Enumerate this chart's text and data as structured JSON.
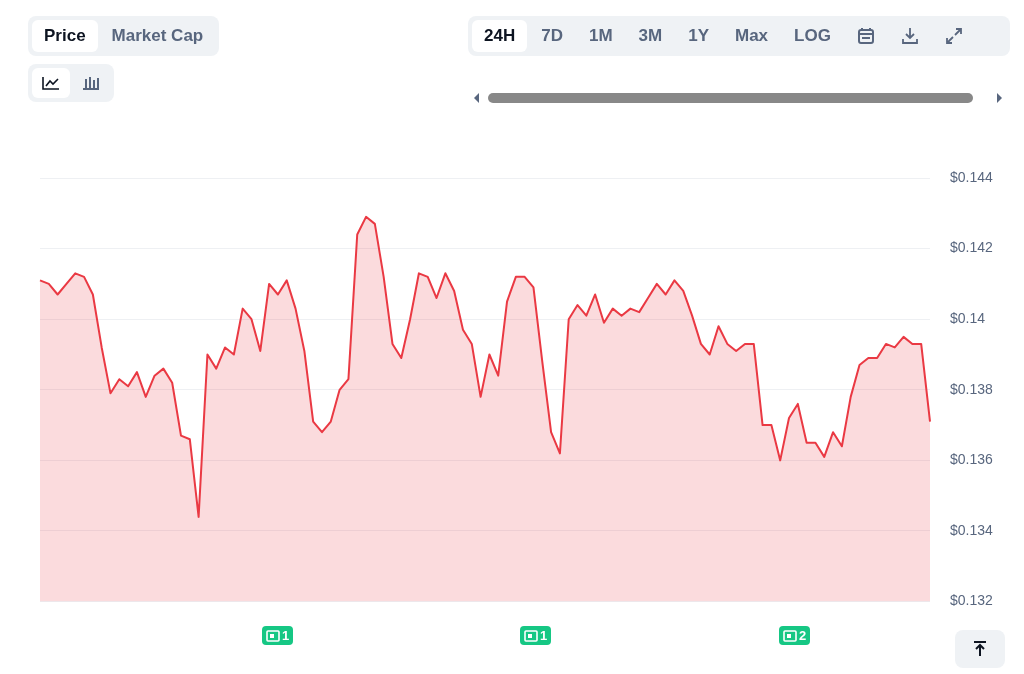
{
  "chart_data": {
    "type": "area",
    "categories": [
      null,
      null,
      null,
      null,
      null,
      null,
      null,
      null,
      null,
      null,
      null,
      null,
      null,
      null,
      null,
      null,
      null,
      null,
      null,
      null,
      null,
      null,
      null,
      null,
      null,
      null,
      null,
      null,
      null,
      null,
      null,
      null,
      null,
      null,
      null,
      null,
      null,
      null,
      null,
      null,
      null,
      null,
      null,
      null,
      null,
      null,
      null,
      null,
      null,
      null,
      null,
      null,
      null,
      null,
      null,
      null,
      null,
      null,
      null,
      null,
      null,
      null,
      null,
      null,
      null,
      null,
      null,
      null,
      null,
      null,
      null,
      null,
      null,
      null,
      null,
      null,
      null,
      null,
      null,
      null,
      null,
      null,
      null,
      null,
      null,
      null,
      null,
      null,
      null,
      null,
      null,
      null,
      null,
      null,
      null,
      null,
      null,
      null,
      null,
      null,
      null,
      null
    ],
    "series": [
      {
        "color": "#ea3943",
        "values": [
          0.1411,
          0.141,
          0.1407,
          0.141,
          0.1413,
          0.1412,
          0.1407,
          0.1392,
          0.1379,
          0.1383,
          0.1381,
          0.1385,
          0.1378,
          0.1384,
          0.1386,
          0.1382,
          0.1367,
          0.1366,
          0.1344,
          0.139,
          0.1386,
          0.1392,
          0.139,
          0.1403,
          0.14,
          0.1391,
          0.141,
          0.1407,
          0.1411,
          0.1403,
          0.1391,
          0.1371,
          0.1368,
          0.1371,
          0.138,
          0.1383,
          0.1424,
          0.1429,
          0.1427,
          0.1412,
          0.1393,
          0.1389,
          0.14,
          0.1413,
          0.1412,
          0.1406,
          0.1413,
          0.1408,
          0.1397,
          0.1393,
          0.1378,
          0.139,
          0.1384,
          0.1405,
          0.1412,
          0.1412,
          0.1409,
          0.1388,
          0.1368,
          0.1362,
          0.14,
          0.1404,
          0.1401,
          0.1407,
          0.1399,
          0.1403,
          0.1401,
          0.1403,
          0.1402,
          0.1406,
          0.141,
          0.1407,
          0.1411,
          0.1408,
          0.1401,
          0.1393,
          0.139,
          0.1398,
          0.1393,
          0.1391,
          0.1393,
          0.1393,
          0.137,
          0.137,
          0.136,
          0.1372,
          0.1376,
          0.1365,
          0.1365,
          0.1361,
          0.1368,
          0.1364,
          0.1378,
          0.1387,
          0.1389,
          0.1389,
          0.1393,
          0.1392,
          0.1395,
          0.1393,
          0.1393,
          0.1371
        ]
      }
    ],
    "ylim": [
      0.132,
      0.144
    ],
    "yticks": [
      {
        "value": 0.132,
        "label": "$0.132"
      },
      {
        "value": 0.134,
        "label": "$0.134"
      },
      {
        "value": 0.136,
        "label": "$0.136"
      },
      {
        "value": 0.138,
        "label": "$0.138"
      },
      {
        "value": 0.14,
        "label": "$0.14"
      },
      {
        "value": 0.142,
        "label": "$0.142"
      },
      {
        "value": 0.144,
        "label": "$0.144"
      }
    ],
    "tick_labels": "y",
    "grid": "y",
    "legend": false,
    "marker": "none",
    "line_style": "solid",
    "annotations": [
      "Price",
      "Market Cap",
      "24H",
      "7D",
      "1M",
      "3M",
      "1Y",
      "Max",
      "LOG",
      "1",
      "1",
      "2"
    ]
  }
}
